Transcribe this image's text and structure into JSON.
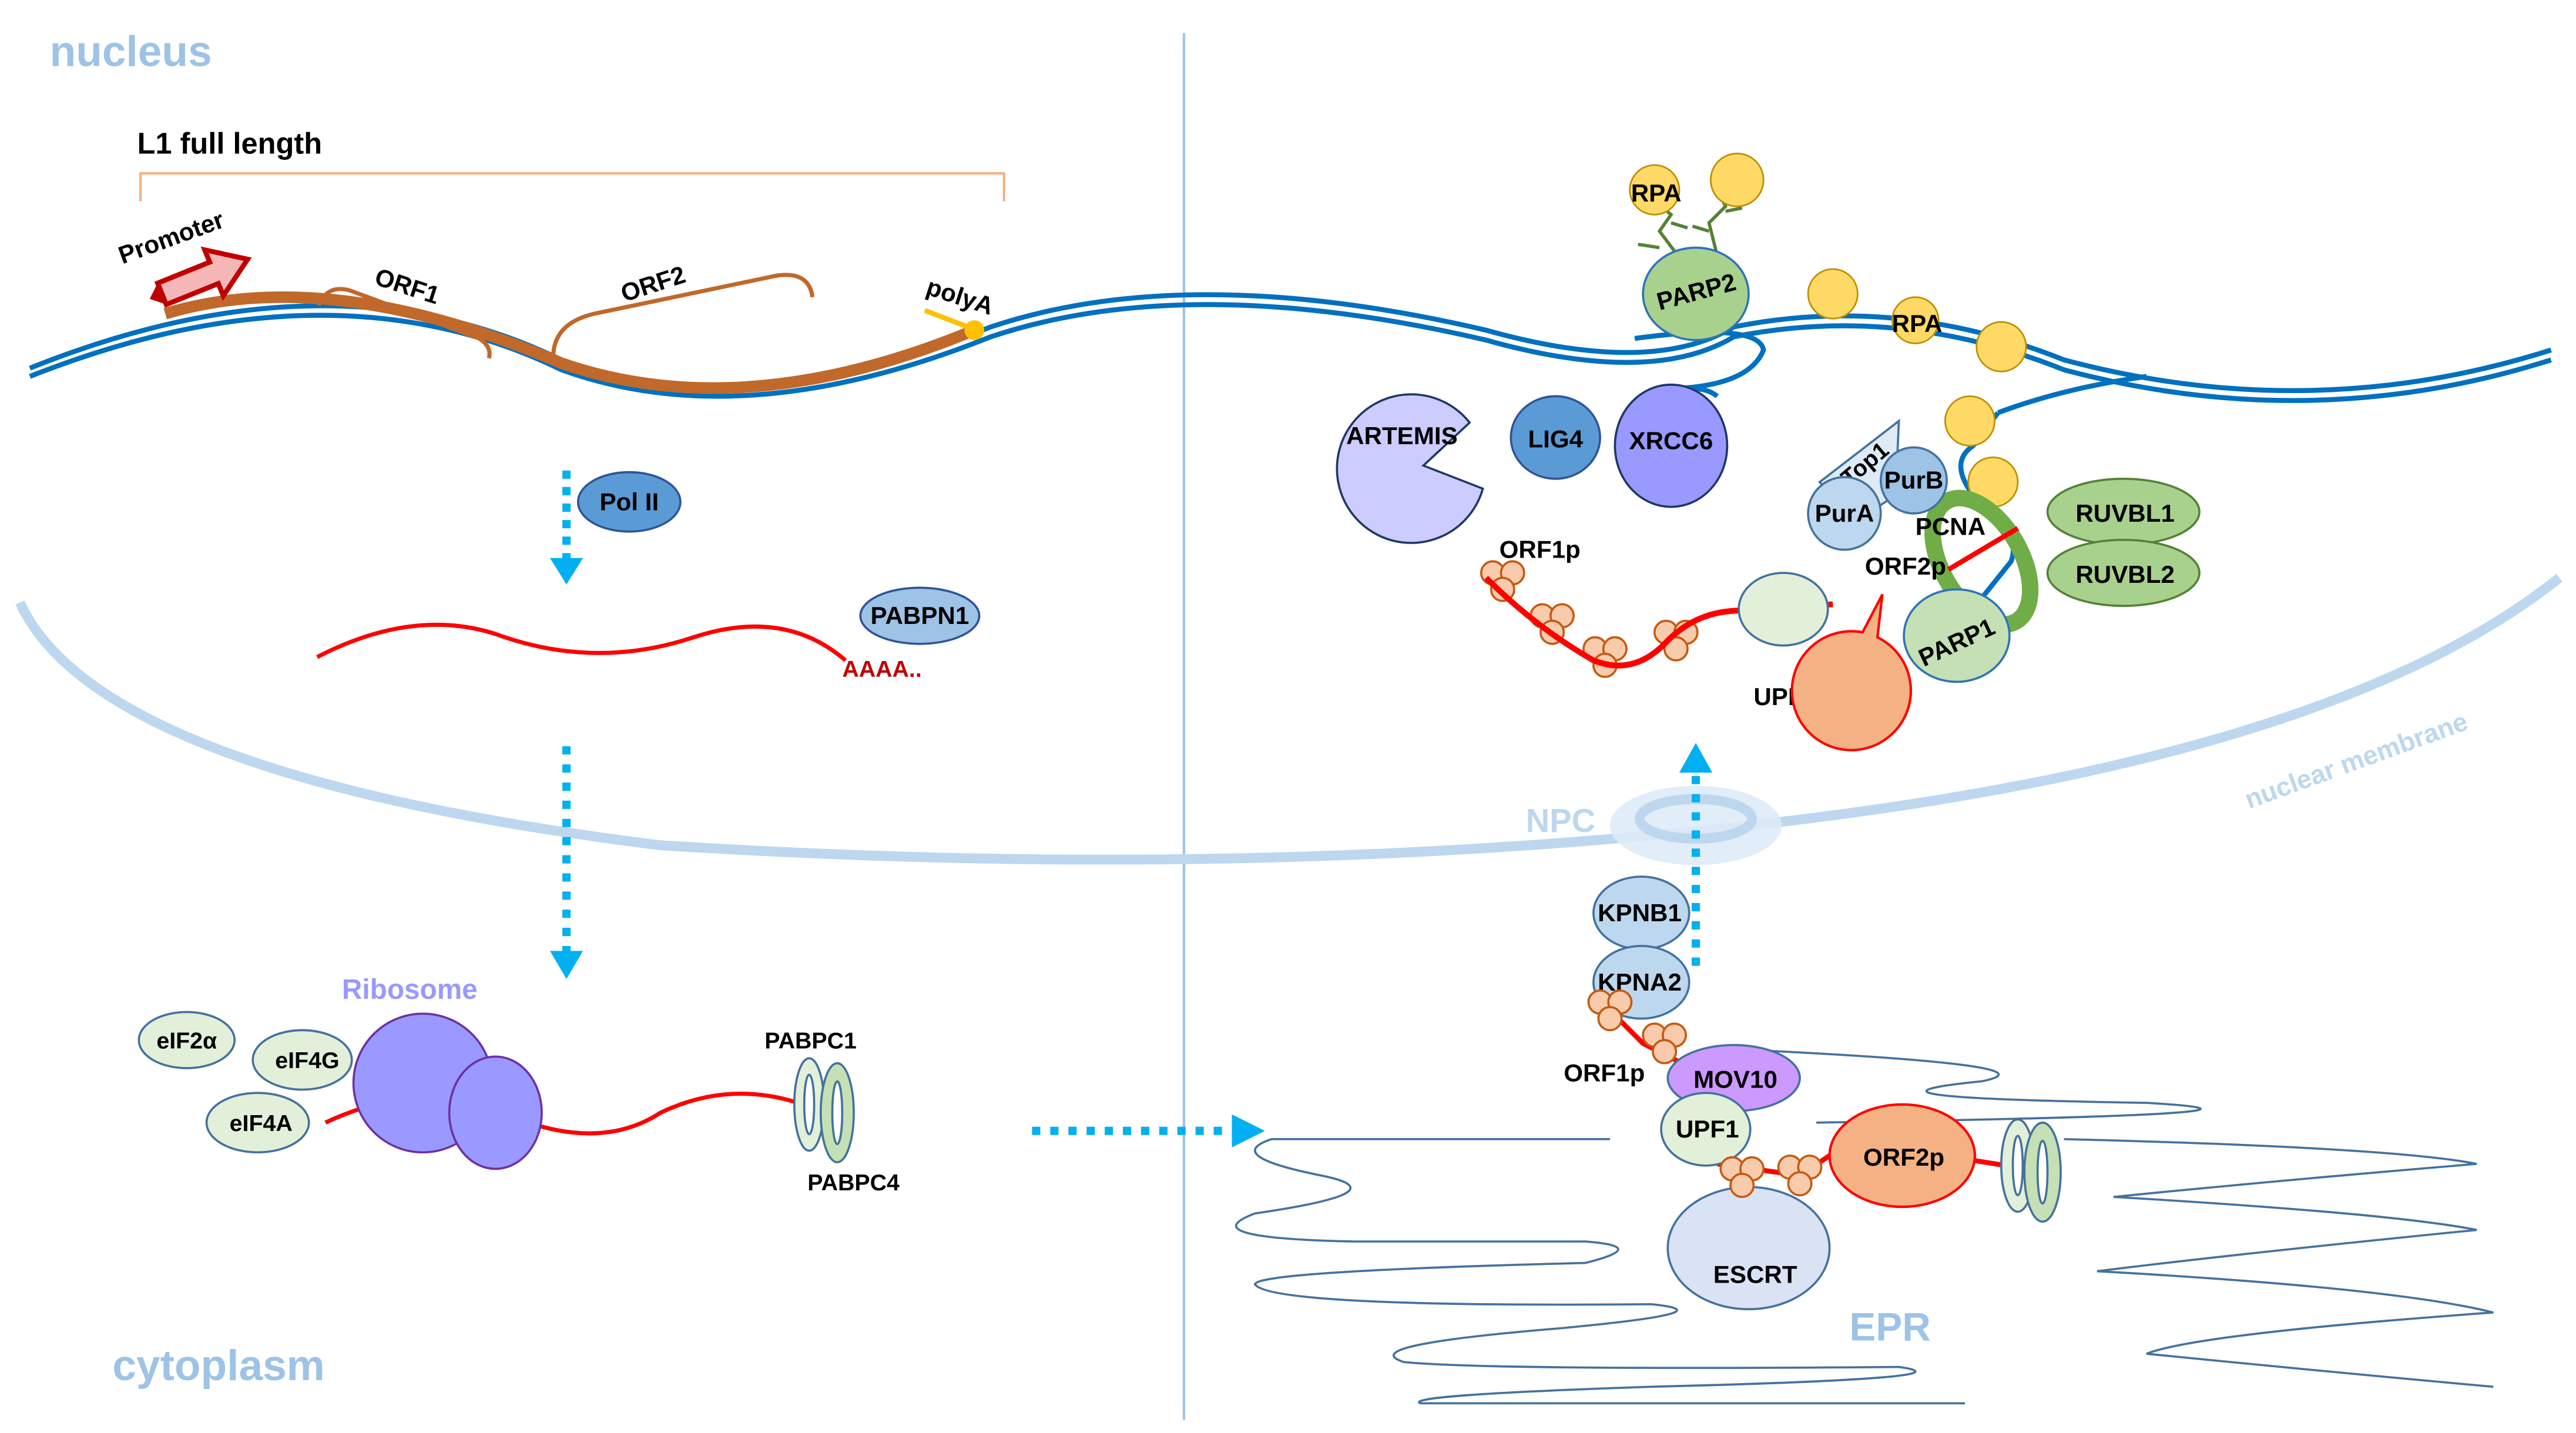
{
  "regions": {
    "nucleus": "nucleus",
    "cytoplasm": "cytoplasm",
    "nuclear_membrane": "nuclear membrane",
    "npc": "NPC",
    "epr": "EPR"
  },
  "l1": {
    "title": "L1 full length",
    "promoter": "Promoter",
    "orf1": "ORF1",
    "orf2": "ORF2",
    "polya": "polyA"
  },
  "transcription": {
    "pol2": "Pol II",
    "pabpn1": "PABPN1",
    "polya_tail": "AAAA.."
  },
  "translation": {
    "ribosome": "Ribosome",
    "eif2a": "eIF2α",
    "eif4g": "eIF4G",
    "eif4a": "eIF4A",
    "pabpc1": "PABPC1",
    "pabpc4": "PABPC4"
  },
  "cytoplasm_rnp": {
    "kpnb1": "KPNB1",
    "kpna2": "KPNA2",
    "orf1p": "ORF1p",
    "mov10": "MOV10",
    "upf1": "UPF1",
    "orf2p": "ORF2p",
    "escrt": "ESCRT"
  },
  "nucleus_rnp": {
    "rpa_1": "RPA",
    "rpa_2": "RPA",
    "parp2": "PARP2",
    "artemis": "ARTEMIS",
    "lig4": "LIG4",
    "xrcc6": "XRCC6",
    "top1": "Top1",
    "purb": "PurB",
    "pura": "PurA",
    "pcna": "PCNA",
    "orf2p": "ORF2p",
    "parp1": "PARP1",
    "ruvbl1": "RUVBL1",
    "ruvbl2": "RUVBL2",
    "orf1p": "ORF1p",
    "upf1": "UPF1"
  },
  "colors": {
    "dna": "#0070c0",
    "l1_element": "#c0692a",
    "rna": "#ff0000",
    "transport_arrow": "#00b0f0",
    "membrane": "#bdd7ee",
    "region_label": "#9dc3e6"
  }
}
